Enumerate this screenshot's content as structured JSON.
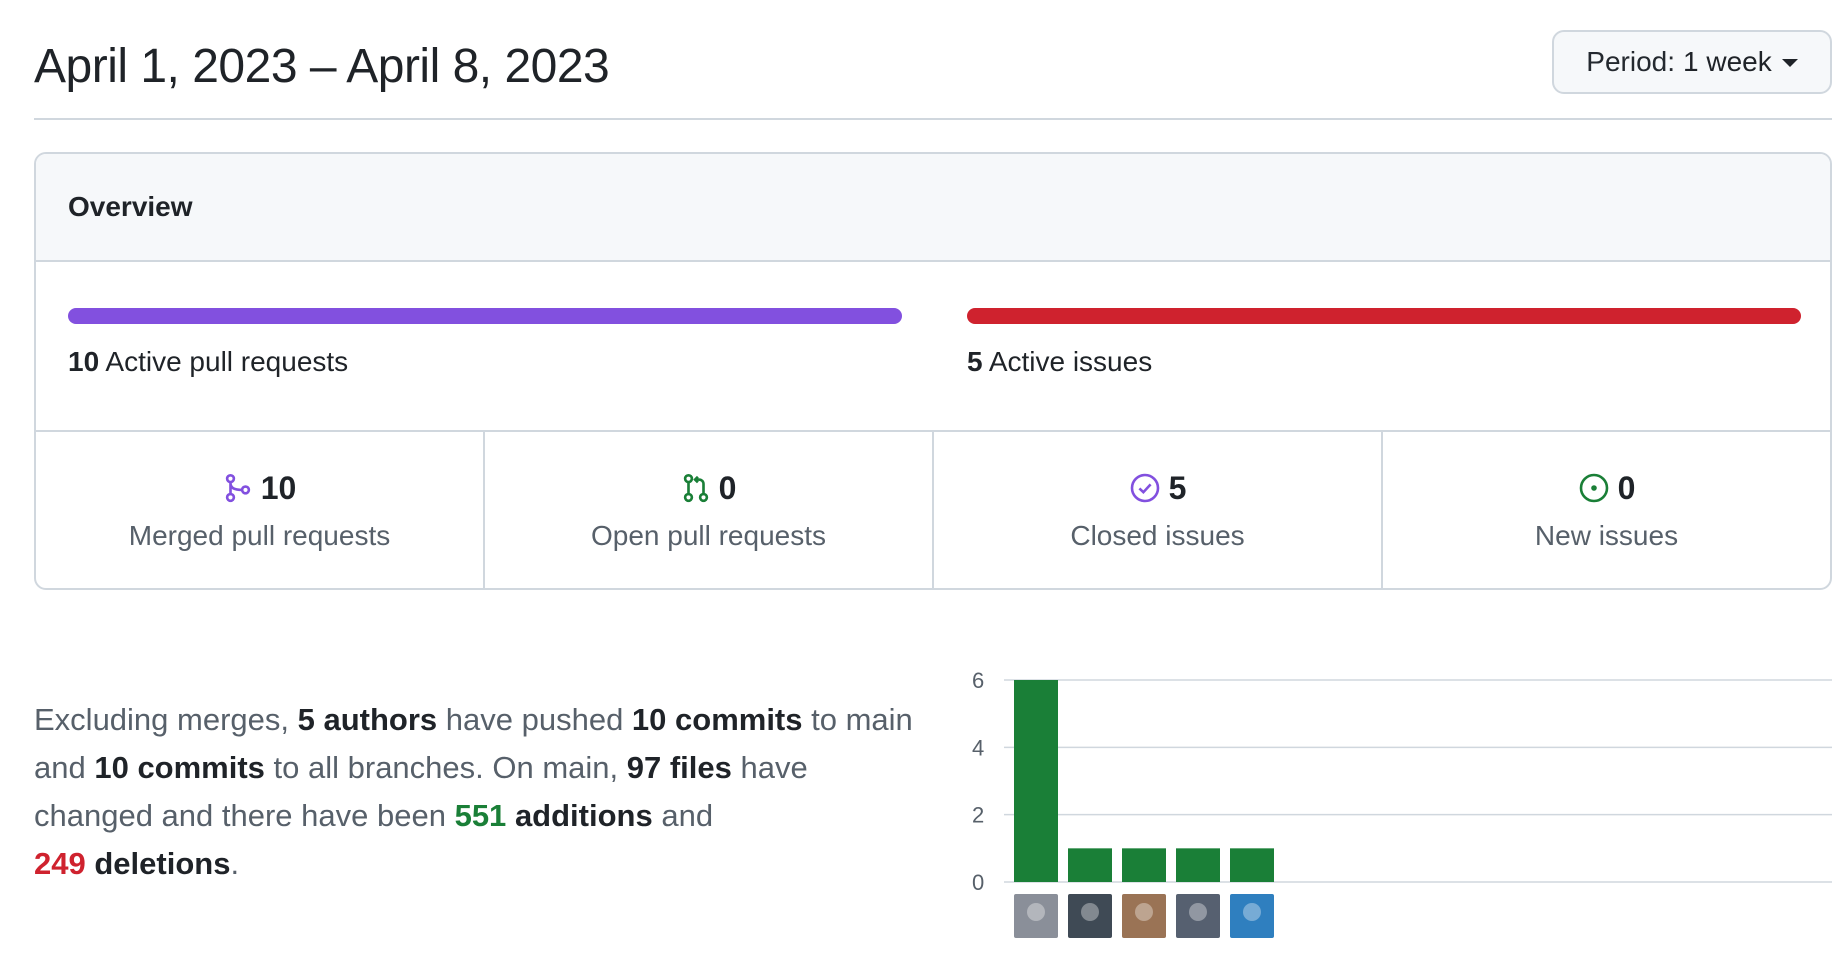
{
  "header": {
    "title": "April 1, 2023 – April 8, 2023",
    "period_label": "Period:",
    "period_value": "1 week",
    "caret_icon": "triangle-down-icon"
  },
  "overview": {
    "title": "Overview",
    "active_prs": {
      "count": "10",
      "label": "Active pull requests",
      "color": "#8250df",
      "fill_fraction": 1.0
    },
    "active_issues": {
      "count": "5",
      "label": "Active issues",
      "color": "#cf222e",
      "fill_fraction": 1.0
    },
    "stats": [
      {
        "icon": "git-merge-icon",
        "value": "10",
        "label": "Merged pull requests",
        "color": "#8250df"
      },
      {
        "icon": "git-pull-request-icon",
        "value": "0",
        "label": "Open pull requests",
        "color": "#1a7f37"
      },
      {
        "icon": "issue-closed-icon",
        "value": "5",
        "label": "Closed issues",
        "color": "#8250df"
      },
      {
        "icon": "issue-opened-icon",
        "value": "0",
        "label": "New issues",
        "color": "#1a7f37"
      }
    ]
  },
  "summary": {
    "p1": "Excluding merges, ",
    "authors": "5 authors",
    "p2": " have pushed ",
    "commits_main": "10 commits",
    "p3": " to main and ",
    "commits_all": "10 commits",
    "p4": " to all branches. On main, ",
    "files": "97 files",
    "p5": " have changed and there have been ",
    "additions_num": "551",
    "additions_word": "additions",
    "p6": " and ",
    "deletions_num": "249",
    "deletions_word": "deletions",
    "p7": "."
  },
  "chart_data": {
    "type": "bar",
    "categories": [
      "author-1",
      "author-2",
      "author-3",
      "author-4",
      "author-5"
    ],
    "values": [
      6,
      1,
      1,
      1,
      1
    ],
    "yticks": [
      "0",
      "2",
      "4",
      "6"
    ],
    "ylim": [
      0,
      6
    ],
    "grid": true,
    "bar_color": "#1a7f37",
    "avatar_colors": [
      "#8a8f99",
      "#3f4a55",
      "#9a7355",
      "#566070",
      "#2f7fbf"
    ]
  }
}
